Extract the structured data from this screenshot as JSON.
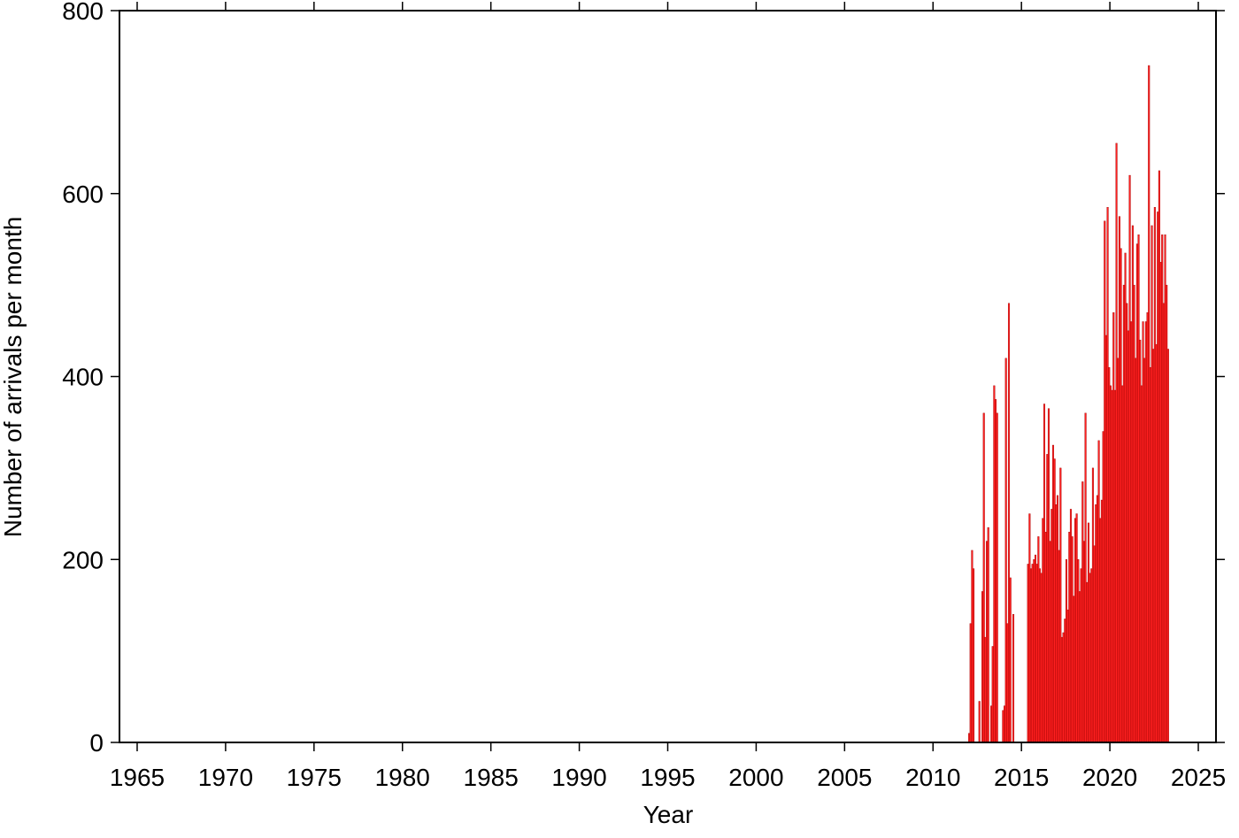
{
  "chart_data": {
    "type": "histogram",
    "xlabel": "Year",
    "ylabel": "Number of arrivals per month",
    "color": "#ff2020",
    "xlim": [
      1964,
      2026
    ],
    "xticks": [
      1965,
      1970,
      1975,
      1980,
      1985,
      1990,
      1995,
      2000,
      2005,
      2010,
      2015,
      2020,
      2025
    ],
    "ylim": [
      0,
      800
    ],
    "yticks": [
      0,
      200,
      400,
      600,
      800
    ],
    "bins": [
      2012,
      2012.083,
      2012.167,
      2012.25,
      2012.333,
      2012.417,
      2012.5,
      2012.583,
      2012.667,
      2012.75,
      2012.833,
      2012.917,
      2013,
      2013.083,
      2013.167,
      2013.25,
      2013.333,
      2013.417,
      2013.5,
      2013.583,
      2013.667,
      2013.75,
      2013.833,
      2013.917,
      2014,
      2014.083,
      2014.167,
      2014.25,
      2014.333,
      2014.417,
      2014.5,
      2014.583,
      2014.667,
      2014.75,
      2014.833,
      2014.917,
      2015,
      2015.083,
      2015.167,
      2015.25,
      2015.333,
      2015.417,
      2015.5,
      2015.583,
      2015.667,
      2015.75,
      2015.833,
      2015.917,
      2016,
      2016.083,
      2016.167,
      2016.25,
      2016.333,
      2016.417,
      2016.5,
      2016.583,
      2016.667,
      2016.75,
      2016.833,
      2016.917,
      2017,
      2017.083,
      2017.167,
      2017.25,
      2017.333,
      2017.417,
      2017.5,
      2017.583,
      2017.667,
      2017.75,
      2017.833,
      2017.917,
      2018,
      2018.083,
      2018.167,
      2018.25,
      2018.333,
      2018.417,
      2018.5,
      2018.583,
      2018.667,
      2018.75,
      2018.833,
      2018.917,
      2019,
      2019.083,
      2019.167,
      2019.25,
      2019.333,
      2019.417,
      2019.5,
      2019.583,
      2019.667,
      2019.75,
      2019.833,
      2019.917,
      2020,
      2020.083,
      2020.167,
      2020.25,
      2020.333,
      2020.417,
      2020.5,
      2020.583,
      2020.667,
      2020.75,
      2020.833,
      2020.917,
      2021,
      2021.083,
      2021.167,
      2021.25,
      2021.333,
      2021.417,
      2021.5,
      2021.583,
      2021.667,
      2021.75,
      2021.833,
      2021.917,
      2022,
      2022.083,
      2022.167,
      2022.25,
      2022.333,
      2022.417,
      2022.5,
      2022.583,
      2022.667,
      2022.75,
      2022.833,
      2022.917,
      2023,
      2023.083,
      2023.167,
      2023.25,
      2023.333
    ],
    "values": [
      10,
      130,
      210,
      190,
      0,
      0,
      0,
      45,
      0,
      165,
      360,
      115,
      220,
      235,
      0,
      40,
      105,
      390,
      375,
      360,
      0,
      0,
      0,
      35,
      40,
      420,
      130,
      480,
      180,
      0,
      140,
      0,
      0,
      0,
      0,
      0,
      0,
      0,
      0,
      0,
      195,
      250,
      190,
      195,
      200,
      205,
      195,
      225,
      190,
      185,
      245,
      370,
      230,
      315,
      365,
      220,
      255,
      325,
      310,
      260,
      270,
      210,
      300,
      115,
      120,
      135,
      200,
      145,
      230,
      255,
      225,
      160,
      245,
      250,
      200,
      165,
      190,
      285,
      220,
      360,
      175,
      240,
      185,
      190,
      300,
      215,
      260,
      270,
      330,
      245,
      265,
      340,
      570,
      445,
      585,
      410,
      390,
      385,
      470,
      385,
      655,
      420,
      575,
      540,
      390,
      500,
      535,
      480,
      450,
      620,
      460,
      565,
      500,
      420,
      545,
      555,
      440,
      390,
      460,
      420,
      460,
      470,
      740,
      410,
      565,
      430,
      585,
      435,
      580,
      625,
      525,
      555,
      480,
      555,
      500,
      430
    ]
  }
}
